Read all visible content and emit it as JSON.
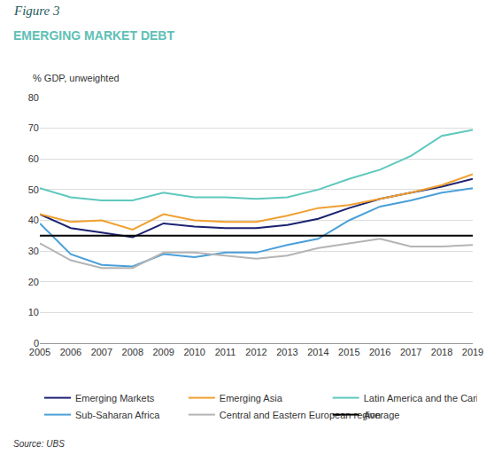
{
  "chart_data": {
    "type": "line",
    "figure": "Figure 3",
    "title": "EMERGING MARKET DEBT",
    "y_label": "% GDP, unweighted",
    "source": "Source: UBS",
    "x": [
      2005,
      2006,
      2007,
      2008,
      2009,
      2010,
      2011,
      2012,
      2013,
      2014,
      2015,
      2016,
      2017,
      2018,
      2019
    ],
    "xlim": [
      2005,
      2019
    ],
    "xticks": [
      2005,
      2006,
      2007,
      2008,
      2009,
      2010,
      2011,
      2012,
      2013,
      2014,
      2015,
      2016,
      2017,
      2018,
      2019
    ],
    "ylim": [
      0,
      80
    ],
    "yticks": [
      0,
      10,
      20,
      30,
      40,
      50,
      60,
      70,
      80
    ],
    "grid": true,
    "legend": "bottom",
    "series": [
      {
        "name": "Emerging Markets",
        "color": "#1b2170",
        "values": [
          42,
          37.5,
          36,
          34.5,
          39,
          38,
          37.5,
          37.5,
          38.5,
          40.5,
          44,
          47,
          49,
          51,
          53.5
        ]
      },
      {
        "name": "Emerging Asia",
        "color": "#f0a030",
        "values": [
          42,
          39.5,
          40,
          37,
          42,
          40,
          39.5,
          39.5,
          41.5,
          44,
          45,
          47,
          49,
          51.5,
          55
        ]
      },
      {
        "name": "Latin America and the Caribbean",
        "color": "#5ec8be",
        "values": [
          50.5,
          47.5,
          46.5,
          46.5,
          49,
          47.5,
          47.5,
          47,
          47.5,
          50,
          53.5,
          56.5,
          61,
          67.5,
          69.5
        ]
      },
      {
        "name": "Sub-Saharan Africa",
        "color": "#4a9fd8",
        "values": [
          39,
          29,
          25.5,
          25,
          29,
          28,
          29.5,
          29.5,
          32,
          34,
          40,
          44.5,
          46.5,
          49,
          50.5
        ]
      },
      {
        "name": "Central and Eastern European region",
        "color": "#b4b4b4",
        "values": [
          32.5,
          27,
          24.5,
          24.5,
          29.5,
          29.5,
          28.5,
          27.5,
          28.5,
          31,
          32.5,
          34,
          31.5,
          31.5,
          32
        ]
      },
      {
        "name": "Average",
        "color": "#000000",
        "values": [
          35,
          35,
          35,
          35,
          35,
          35,
          35,
          35,
          35,
          35,
          35,
          35,
          35,
          35,
          35
        ]
      }
    ]
  }
}
